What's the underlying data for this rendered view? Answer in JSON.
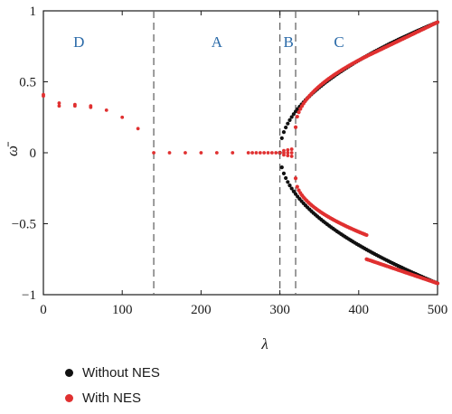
{
  "chart_data": {
    "type": "scatter",
    "xlabel": "λ",
    "ylabel": "ω̄",
    "xlim": [
      0,
      500
    ],
    "ylim": [
      -1,
      1
    ],
    "xticks": [
      "0",
      "100",
      "200",
      "300",
      "400",
      "500"
    ],
    "yticks": [
      "1",
      "0.5",
      "0",
      "−0.5",
      "−1"
    ],
    "vlines": [
      140,
      300,
      320
    ],
    "regions": [
      {
        "label": "D",
        "x": 45
      },
      {
        "label": "A",
        "x": 220
      },
      {
        "label": "B",
        "x": 311
      },
      {
        "label": "C",
        "x": 375
      }
    ],
    "series": [
      {
        "name": "Without NES",
        "color": "#111111",
        "branches": [
          {
            "x_start": 300,
            "x_end": 500,
            "y_start": 0,
            "y_end": 0.92,
            "shape": "sqrt",
            "step": 2.5
          },
          {
            "x_start": 300,
            "x_end": 500,
            "y_start": 0,
            "y_end": -0.92,
            "shape": "sqrt",
            "step": 2.5
          }
        ]
      },
      {
        "name": "With NES",
        "color": "#e03030",
        "points": [
          [
            0,
            0.41
          ],
          [
            0,
            0.4
          ],
          [
            20,
            0.35
          ],
          [
            20,
            0.33
          ],
          [
            40,
            0.34
          ],
          [
            40,
            0.33
          ],
          [
            60,
            0.33
          ],
          [
            60,
            0.32
          ],
          [
            80,
            0.3
          ],
          [
            100,
            0.25
          ],
          [
            120,
            0.17
          ],
          [
            140,
            0.0
          ],
          [
            160,
            0.0
          ],
          [
            180,
            0.0
          ],
          [
            200,
            0.0
          ],
          [
            220,
            0.0
          ],
          [
            240,
            0.0
          ],
          [
            260,
            0.0
          ],
          [
            265,
            0.0
          ],
          [
            270,
            0.0
          ],
          [
            275,
            0.0
          ],
          [
            280,
            0.0
          ],
          [
            285,
            0.0
          ],
          [
            290,
            0.0
          ],
          [
            295,
            0.0
          ],
          [
            300,
            0.0
          ],
          [
            305,
            0.0
          ],
          [
            310,
            0.0
          ],
          [
            315,
            0.0
          ],
          [
            305,
            0.015
          ],
          [
            310,
            0.02
          ],
          [
            315,
            0.025
          ],
          [
            305,
            -0.015
          ],
          [
            310,
            -0.02
          ],
          [
            315,
            -0.025
          ]
        ],
        "branches": [
          {
            "x_start": 320,
            "x_end": 410,
            "y_start": 0.18,
            "y_end": 0.68,
            "shape": "sqrt",
            "step": 2
          },
          {
            "x_start": 410,
            "x_end": 500,
            "y_start": 0.68,
            "y_end": 0.92,
            "shape": "linear",
            "step": 2
          },
          {
            "x_start": 320,
            "x_end": 410,
            "y_start": -0.18,
            "y_end": -0.58,
            "shape": "sqrt",
            "step": 2
          },
          {
            "x_start": 410,
            "x_end": 500,
            "y_start": -0.75,
            "y_end": -0.92,
            "shape": "linear",
            "step": 2
          }
        ]
      }
    ]
  }
}
